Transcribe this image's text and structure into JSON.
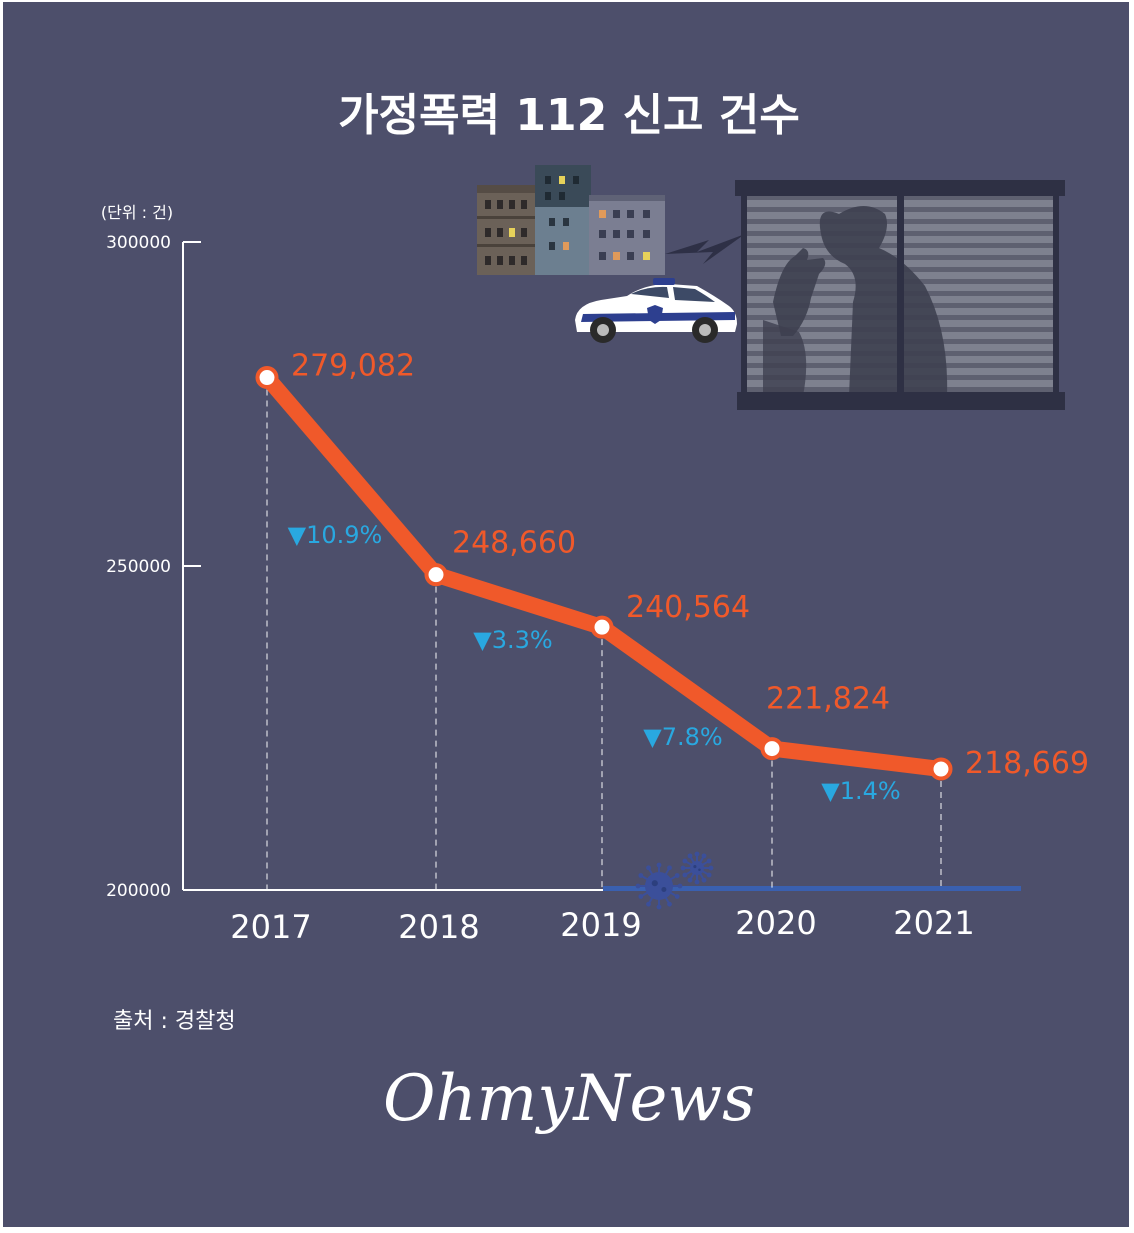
{
  "colors": {
    "background": "#4d4f6b",
    "line": "#f0592a",
    "label": "#f0592a",
    "change": "#29a8e0",
    "axis": "#ffffff",
    "text": "#ffffff",
    "covid_band": "#3a60b0"
  },
  "chart_data": {
    "type": "line",
    "title": "가정폭력 112 신고 건수",
    "unit_label": "(단위 : 건)",
    "xlabel": "",
    "ylabel": "",
    "categories": [
      "2017",
      "2018",
      "2019",
      "2020",
      "2021"
    ],
    "series": [
      {
        "values": [
          279082,
          248660,
          240564,
          221824,
          218669
        ]
      }
    ],
    "value_labels": [
      "279,082",
      "248,660",
      "240,564",
      "221,824",
      "218,669"
    ],
    "change_labels": [
      "▼10.9%",
      "▼3.3%",
      "▼7.8%",
      "▼1.4%"
    ],
    "ylim": [
      200000,
      300000
    ],
    "yticks": [
      "300000",
      "250000",
      "200000"
    ],
    "grid": false,
    "legend": "none"
  },
  "source": "출처 : 경찰청",
  "logo": "OhmyNews",
  "illustration": {
    "icons": [
      "building-icon",
      "police-car-icon",
      "window-silhouette-icon",
      "virus-icon"
    ]
  }
}
